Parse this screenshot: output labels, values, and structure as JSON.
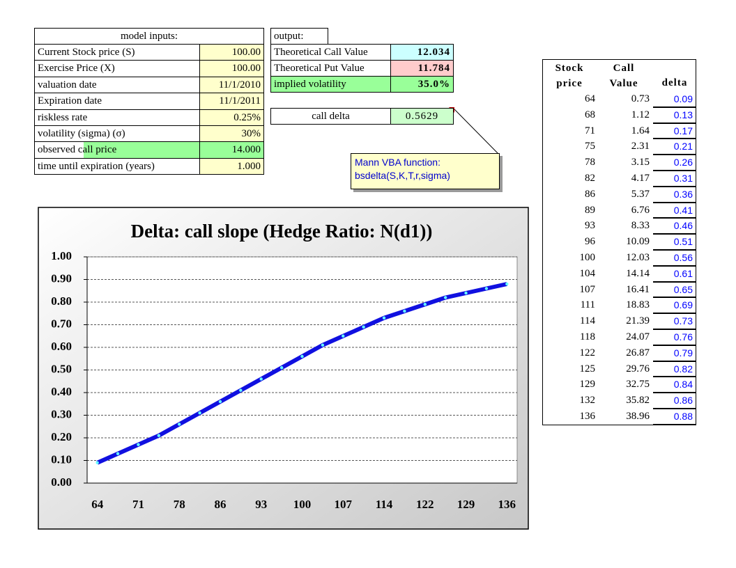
{
  "inputs": {
    "title": "model inputs:",
    "rows": [
      {
        "label": "Current Stock price (S)",
        "value": "100.00"
      },
      {
        "label": "Exercise Price (X)",
        "value": "100.00"
      },
      {
        "label": "valuation date",
        "value": "11/1/2010"
      },
      {
        "label": "Expiration date",
        "value": "11/1/2011"
      },
      {
        "label": "riskless rate",
        "value": "0.25%"
      },
      {
        "label": "volatility (sigma) (σ)",
        "value": "30%"
      },
      {
        "label": "observed call price",
        "value": "14.000"
      },
      {
        "label": "time until expiration (years)",
        "value": "1.000"
      }
    ]
  },
  "output": {
    "title": "output:",
    "rows": [
      {
        "label": "Theoretical Call Value",
        "value": "12.034"
      },
      {
        "label": "Theoretical Put Value",
        "value": "11.784"
      },
      {
        "label": "implied volatility",
        "value": "35.0%"
      }
    ]
  },
  "call_delta": {
    "label": "call delta",
    "value": "0.5629"
  },
  "comment": {
    "lines": [
      "Mann VBA function:",
      "bsdelta(S,K,T,r,sigma)"
    ]
  },
  "table": {
    "header": [
      [
        "Stock",
        "price"
      ],
      [
        "Call",
        "Value"
      ],
      [
        "delta"
      ]
    ],
    "rows": [
      [
        "64",
        "0.73",
        "0.09"
      ],
      [
        "68",
        "1.12",
        "0.13"
      ],
      [
        "71",
        "1.64",
        "0.17"
      ],
      [
        "75",
        "2.31",
        "0.21"
      ],
      [
        "78",
        "3.15",
        "0.26"
      ],
      [
        "82",
        "4.17",
        "0.31"
      ],
      [
        "86",
        "5.37",
        "0.36"
      ],
      [
        "89",
        "6.76",
        "0.41"
      ],
      [
        "93",
        "8.33",
        "0.46"
      ],
      [
        "96",
        "10.09",
        "0.51"
      ],
      [
        "100",
        "12.03",
        "0.56"
      ],
      [
        "104",
        "14.14",
        "0.61"
      ],
      [
        "107",
        "16.41",
        "0.65"
      ],
      [
        "111",
        "18.83",
        "0.69"
      ],
      [
        "114",
        "21.39",
        "0.73"
      ],
      [
        "118",
        "24.07",
        "0.76"
      ],
      [
        "122",
        "26.87",
        "0.79"
      ],
      [
        "125",
        "29.76",
        "0.82"
      ],
      [
        "129",
        "32.75",
        "0.84"
      ],
      [
        "132",
        "35.82",
        "0.86"
      ],
      [
        "136",
        "38.96",
        "0.88"
      ]
    ]
  },
  "chart_data": {
    "type": "line",
    "title": "Delta: call slope (Hedge Ratio: N(d1))",
    "categories": [
      "64",
      null,
      "71",
      null,
      "78",
      null,
      "86",
      null,
      "93",
      null,
      "100",
      null,
      "107",
      null,
      "114",
      null,
      "122",
      null,
      "129",
      null,
      "136"
    ],
    "values": [
      0.09,
      0.13,
      0.17,
      0.21,
      0.26,
      0.31,
      0.36,
      0.41,
      0.46,
      0.51,
      0.56,
      0.61,
      0.65,
      0.69,
      0.73,
      0.76,
      0.79,
      0.82,
      0.84,
      0.86,
      0.88
    ],
    "color": "#1010e0",
    "marker_color": "#66ffff",
    "ylim": [
      0,
      1
    ],
    "yticks": [
      {
        "value": 0,
        "label": "0.00"
      },
      {
        "value": 0.1,
        "label": "0.10"
      },
      {
        "value": 0.2,
        "label": "0.20"
      },
      {
        "value": 0.3,
        "label": "0.30"
      },
      {
        "value": 0.4,
        "label": "0.40"
      },
      {
        "value": 0.5,
        "label": "0.50"
      },
      {
        "value": 0.6,
        "label": "0.60"
      },
      {
        "value": 0.7,
        "label": "0.70"
      },
      {
        "value": 0.8,
        "label": "0.80"
      },
      {
        "value": 0.9,
        "label": "0.90"
      },
      {
        "value": 1,
        "label": "1.00"
      }
    ],
    "grid": true
  }
}
